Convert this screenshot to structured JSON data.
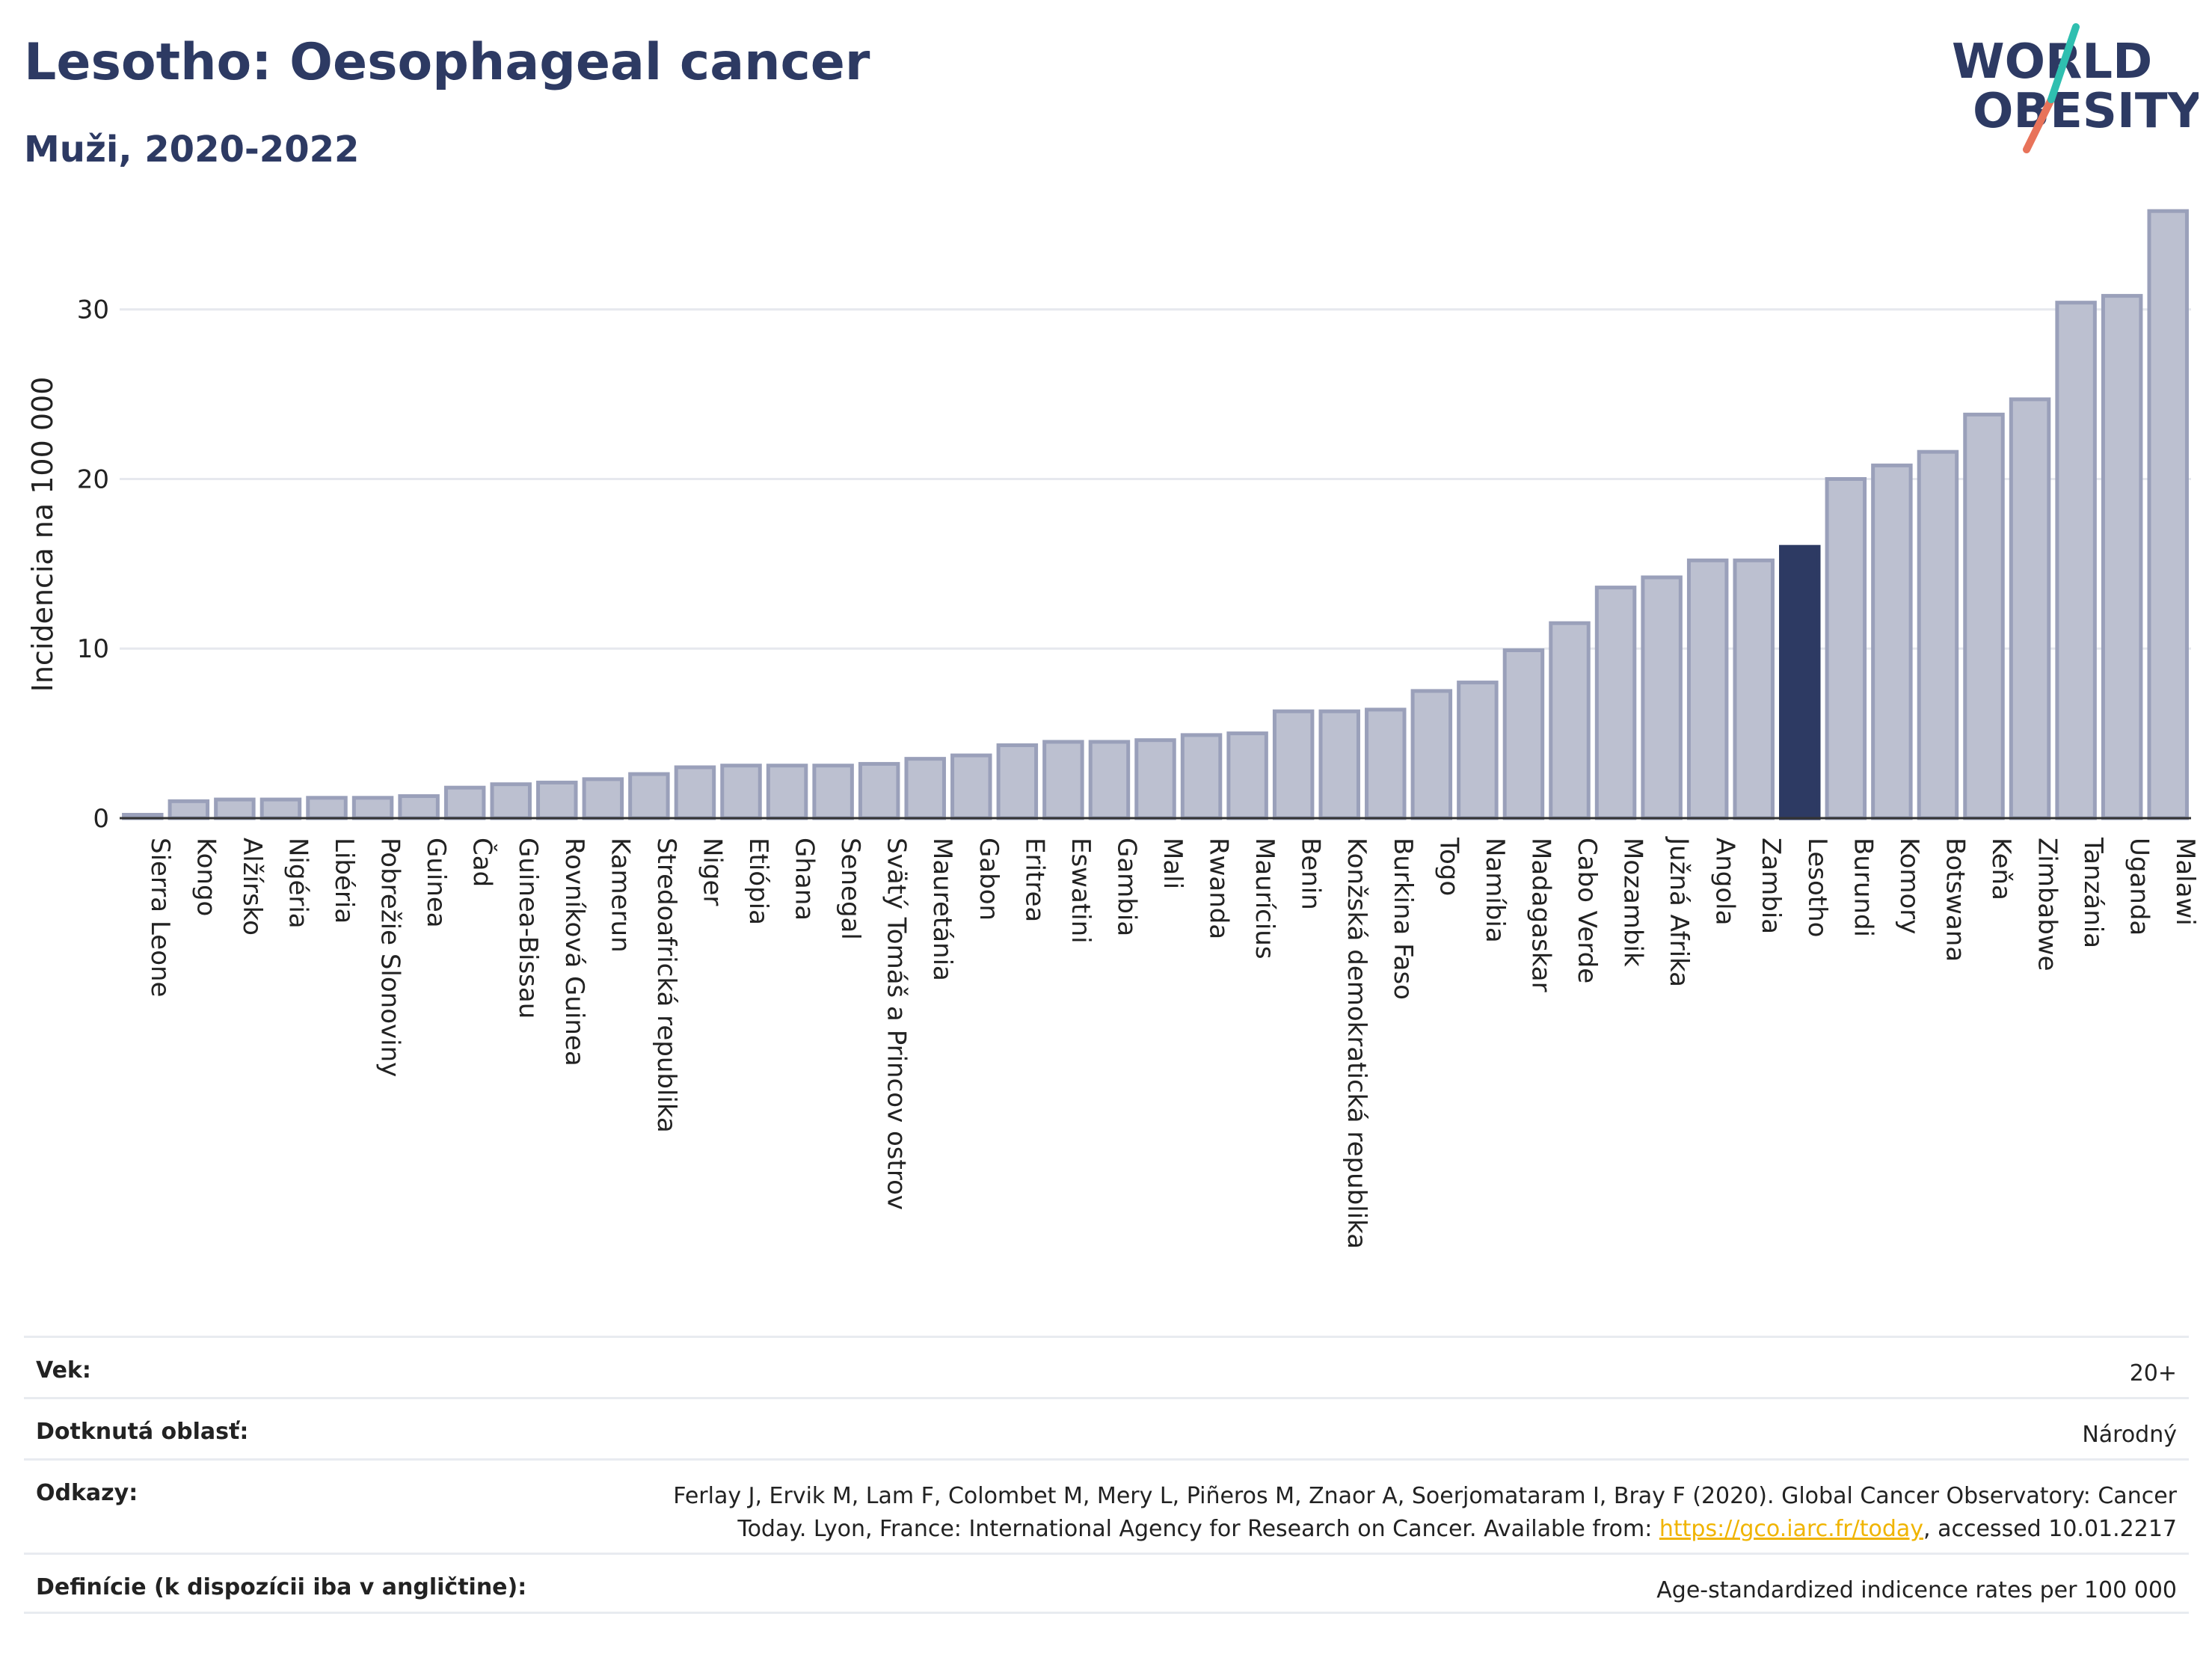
{
  "header": {
    "title": "Lesotho: Oesophageal cancer",
    "subtitle": "Muži, 2020-2022"
  },
  "logo": {
    "line1": "WORLD",
    "line2": "OBESITY",
    "accent_colors": [
      "#2fbfb0",
      "#e8735a"
    ]
  },
  "colors": {
    "bar": "#bcc0d0",
    "bar_border": "#9aa0ba",
    "highlight": "#2d3a63",
    "grid": "#e6e8ee",
    "axis": "#333333"
  },
  "chart_data": {
    "type": "bar",
    "title": "Lesotho: Oesophageal cancer",
    "subtitle": "Muži, 2020-2022",
    "ylabel": "Incidencia na 100 000",
    "ylim": [
      0,
      37
    ],
    "yticks": [
      0,
      10,
      20,
      30
    ],
    "grid": true,
    "highlight": "Lesotho",
    "categories": [
      "Sierra Leone",
      "Kongo",
      "Alžírsko",
      "Nigéria",
      "Libéria",
      "Pobrežie Slonoviny",
      "Guinea",
      "Čad",
      "Guinea-Bissau",
      "Rovníková Guinea",
      "Kamerun",
      "Stredoafrická republika",
      "Niger",
      "Etiópia",
      "Ghana",
      "Senegal",
      "Svätý Tomáš a Princov ostrov",
      "Mauretánia",
      "Gabon",
      "Eritrea",
      "Eswatini",
      "Gambia",
      "Mali",
      "Rwanda",
      "Maurícius",
      "Benin",
      "Konžská demokratická republika",
      "Burkina Faso",
      "Togo",
      "Namíbia",
      "Madagaskar",
      "Cabo Verde",
      "Mozambik",
      "Južná Afrika",
      "Angola",
      "Zambia",
      "Lesotho",
      "Burundi",
      "Komory",
      "Botswana",
      "Keňa",
      "Zimbabwe",
      "Tanzánia",
      "Uganda",
      "Malawi"
    ],
    "values": [
      0.2,
      1.0,
      1.1,
      1.1,
      1.2,
      1.2,
      1.3,
      1.8,
      2.0,
      2.1,
      2.3,
      2.6,
      3.0,
      3.1,
      3.1,
      3.1,
      3.2,
      3.5,
      3.7,
      4.3,
      4.5,
      4.5,
      4.6,
      4.9,
      5.0,
      6.3,
      6.3,
      6.4,
      7.5,
      8.0,
      9.9,
      11.5,
      13.6,
      14.2,
      15.2,
      15.2,
      16.0,
      20.0,
      20.8,
      21.6,
      23.8,
      24.7,
      30.4,
      30.8,
      35.8
    ]
  },
  "info": {
    "rows": [
      {
        "key": "Vek:",
        "value": "20+"
      },
      {
        "key": "Dotknutá oblasť:",
        "value": "Národný"
      },
      {
        "key": "Odkazy:",
        "value_line1": "Ferlay J, Ervik M, Lam F, Colombet M, Mery L, Piñeros M, Znaor A, Soerjomataram I, Bray F (2020). Global Cancer Observatory: Cancer",
        "value_line2_pre": "Today. Lyon, France: International Agency for Research on Cancer. Available from: ",
        "link": "https://gco.iarc.fr/today",
        "value_line2_post": ", accessed 10.01.2217"
      },
      {
        "key": "Definície (k dispozícii iba v angličtine):",
        "value": "Age-standardized indicence rates per 100 000"
      }
    ]
  }
}
